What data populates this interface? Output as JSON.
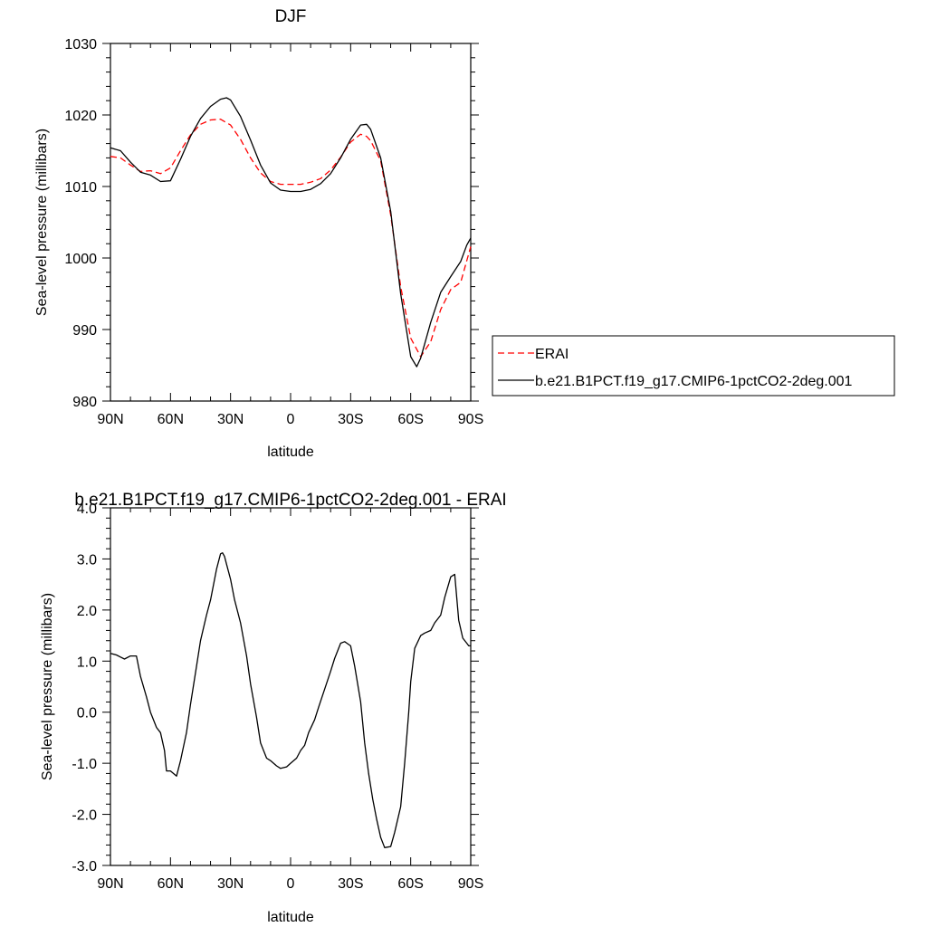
{
  "chart_data": [
    {
      "type": "line",
      "title": "DJF",
      "xlabel": "latitude",
      "ylabel": "Sea-level pressure (millibars)",
      "xlim": [
        90,
        -90
      ],
      "ylim": [
        980,
        1030
      ],
      "x_ticks": [
        {
          "value": 90,
          "label": "90N"
        },
        {
          "value": 60,
          "label": "60N"
        },
        {
          "value": 30,
          "label": "30N"
        },
        {
          "value": 0,
          "label": "0"
        },
        {
          "value": -30,
          "label": "30S"
        },
        {
          "value": -60,
          "label": "60S"
        },
        {
          "value": -90,
          "label": "90S"
        }
      ],
      "y_ticks": [
        {
          "value": 980,
          "label": "980"
        },
        {
          "value": 990,
          "label": "990"
        },
        {
          "value": 1000,
          "label": "1000"
        },
        {
          "value": 1010,
          "label": "1010"
        },
        {
          "value": 1020,
          "label": "1020"
        },
        {
          "value": 1030,
          "label": "1030"
        }
      ],
      "legend_position": "right",
      "series": [
        {
          "name": "ERAI",
          "color": "#ff0000",
          "dash": true,
          "x": [
            90,
            85,
            80,
            75,
            70,
            65,
            60,
            55,
            50,
            45,
            40,
            35,
            30,
            25,
            20,
            15,
            10,
            5,
            0,
            -5,
            -10,
            -15,
            -20,
            -25,
            -30,
            -35,
            -38,
            -40,
            -45,
            -50,
            -55,
            -60,
            -65,
            -70,
            -75,
            -80,
            -85,
            -90
          ],
          "y": [
            1014.2,
            1014.0,
            1013.0,
            1012.1,
            1012.2,
            1011.8,
            1012.6,
            1015.0,
            1017.2,
            1018.7,
            1019.3,
            1019.4,
            1018.6,
            1016.6,
            1014.0,
            1011.9,
            1010.7,
            1010.3,
            1010.3,
            1010.3,
            1010.6,
            1011.1,
            1012.3,
            1014.1,
            1016.2,
            1017.3,
            1017.0,
            1016.4,
            1013.6,
            1006.0,
            996.0,
            988.8,
            986.2,
            988.3,
            992.8,
            995.6,
            996.6,
            1001.6
          ]
        },
        {
          "name": "b.e21.B1PCT.f19_g17.CMIP6-1pctCO2-2deg.001",
          "color": "#000000",
          "dash": false,
          "x": [
            90,
            85,
            80,
            75,
            70,
            65,
            60,
            55,
            50,
            45,
            40,
            35,
            32,
            30,
            25,
            20,
            15,
            10,
            5,
            0,
            -5,
            -10,
            -15,
            -20,
            -25,
            -30,
            -35,
            -38,
            -40,
            -45,
            -50,
            -55,
            -60,
            -63,
            -65,
            -70,
            -75,
            -80,
            -85,
            -88,
            -90
          ],
          "y": [
            1015.4,
            1015.0,
            1013.4,
            1012.0,
            1011.6,
            1010.7,
            1010.8,
            1013.8,
            1017.0,
            1019.5,
            1021.2,
            1022.2,
            1022.4,
            1022.1,
            1019.8,
            1016.5,
            1013.0,
            1010.5,
            1009.5,
            1009.3,
            1009.3,
            1009.6,
            1010.4,
            1011.8,
            1014.0,
            1016.6,
            1018.6,
            1018.7,
            1018.0,
            1014.0,
            1006.5,
            995.0,
            986.2,
            984.8,
            986.0,
            991.0,
            995.2,
            997.4,
            999.5,
            1001.8,
            1002.8
          ]
        }
      ]
    },
    {
      "type": "line",
      "title": "b.e21.B1PCT.f19_g17.CMIP6-1pctCO2-2deg.001 - ERAI",
      "xlabel": "latitude",
      "ylabel": "Sea-level pressure (millibars)",
      "xlim": [
        90,
        -90
      ],
      "ylim": [
        -3.0,
        4.0
      ],
      "x_ticks": [
        {
          "value": 90,
          "label": "90N"
        },
        {
          "value": 60,
          "label": "60N"
        },
        {
          "value": 30,
          "label": "30N"
        },
        {
          "value": 0,
          "label": "0"
        },
        {
          "value": -30,
          "label": "30S"
        },
        {
          "value": -60,
          "label": "60S"
        },
        {
          "value": -90,
          "label": "90S"
        }
      ],
      "y_ticks": [
        {
          "value": -3.0,
          "label": "-3.0"
        },
        {
          "value": -2.0,
          "label": "-2.0"
        },
        {
          "value": -1.0,
          "label": "-1.0"
        },
        {
          "value": 0.0,
          "label": "0.0"
        },
        {
          "value": 1.0,
          "label": "1.0"
        },
        {
          "value": 2.0,
          "label": "2.0"
        },
        {
          "value": 3.0,
          "label": "3.0"
        },
        {
          "value": 4.0,
          "label": "4.0"
        }
      ],
      "series": [
        {
          "color": "#000000",
          "dash": false,
          "x": [
            90,
            87,
            85,
            83,
            80,
            77,
            75,
            72,
            70,
            67,
            65,
            63,
            62,
            60,
            57,
            55,
            52,
            50,
            47,
            45,
            42,
            40,
            37,
            35,
            34,
            33,
            32,
            30,
            28,
            25,
            22,
            20,
            17,
            15,
            12,
            10,
            7,
            5,
            2,
            0,
            -3,
            -5,
            -7,
            -9,
            -12,
            -14,
            -17,
            -20,
            -22,
            -25,
            -27,
            -30,
            -32,
            -35,
            -37,
            -39,
            -41,
            -43,
            -45,
            -47,
            -50,
            -52,
            -55,
            -57,
            -59,
            -60,
            -62,
            -65,
            -67,
            -70,
            -72,
            -75,
            -77,
            -80,
            -82,
            -84,
            -86,
            -88,
            -89,
            -90
          ],
          "y": [
            1.15,
            1.12,
            1.08,
            1.04,
            1.1,
            1.1,
            0.7,
            0.3,
            0.0,
            -0.3,
            -0.4,
            -0.75,
            -1.15,
            -1.15,
            -1.25,
            -0.95,
            -0.4,
            0.15,
            0.9,
            1.4,
            1.9,
            2.2,
            2.8,
            3.1,
            3.12,
            3.05,
            2.9,
            2.6,
            2.2,
            1.75,
            1.1,
            0.55,
            -0.1,
            -0.6,
            -0.9,
            -0.95,
            -1.05,
            -1.1,
            -1.07,
            -1.0,
            -0.9,
            -0.75,
            -0.65,
            -0.4,
            -0.15,
            0.1,
            0.45,
            0.8,
            1.05,
            1.35,
            1.38,
            1.3,
            0.9,
            0.2,
            -0.6,
            -1.2,
            -1.7,
            -2.1,
            -2.45,
            -2.65,
            -2.63,
            -2.35,
            -1.85,
            -1.0,
            0.0,
            0.6,
            1.25,
            1.5,
            1.55,
            1.6,
            1.75,
            1.9,
            2.25,
            2.65,
            2.7,
            1.8,
            1.45,
            1.35,
            1.3,
            1.3
          ]
        }
      ]
    }
  ]
}
